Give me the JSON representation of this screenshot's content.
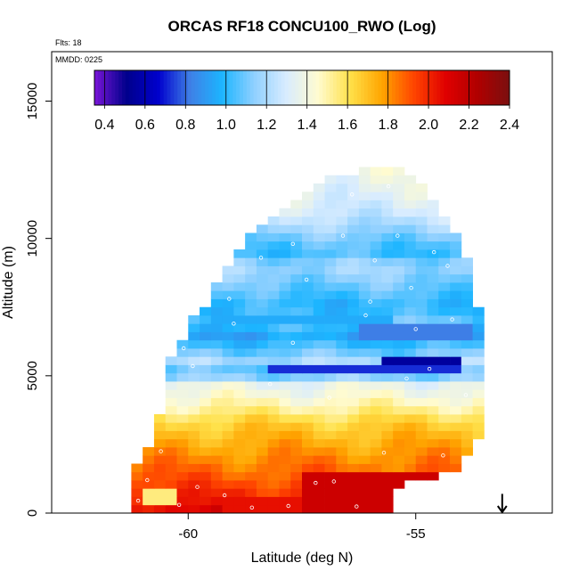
{
  "chart_data": {
    "type": "heatmap",
    "title": "ORCAS RF18 CONCU100_RWO (Log)",
    "flights_note": "Flts: 18",
    "date_note": "MMDD: 0225",
    "xlabel": "Latitude (deg N)",
    "ylabel": "Altitude (m)",
    "xlim": [
      -63,
      -52
    ],
    "ylim": [
      0,
      16800
    ],
    "xticks": [
      -60,
      -55
    ],
    "yticks": [
      0,
      5000,
      10000,
      15000
    ],
    "colorbar": {
      "range": [
        0.35,
        2.4
      ],
      "ticks": [
        0.4,
        0.6,
        0.8,
        1.0,
        1.2,
        1.4,
        1.6,
        1.8,
        2.0,
        2.2,
        2.4
      ],
      "tick_labels": [
        "0.4",
        "0.6",
        "0.8",
        "1.0",
        "1.2",
        "1.4",
        "1.6",
        "1.8",
        "2.0",
        "2.2",
        "2.4"
      ],
      "colors": [
        "#7a16d8",
        "#00008b",
        "#0000cd",
        "#3f80e6",
        "#1cb5ff",
        "#8fd0ff",
        "#d8ecff",
        "#fffbd0",
        "#ffe14a",
        "#ffa500",
        "#ff4500",
        "#e00000",
        "#b00000",
        "#7a1010"
      ]
    },
    "value_profile": {
      "altitudes_m": [
        0,
        400,
        800,
        1300,
        1800,
        2300,
        2800,
        3300,
        3800,
        4300,
        4700,
        5100,
        5500,
        6000,
        6500,
        7000,
        7500,
        8000,
        8500,
        9000,
        9500,
        10000,
        10500,
        11000,
        11500,
        12000,
        12500
      ],
      "log_values": [
        2.12,
        2.02,
        1.97,
        1.9,
        1.84,
        1.78,
        1.72,
        1.65,
        1.52,
        1.42,
        1.36,
        1.0,
        1.2,
        1.05,
        0.93,
        1.08,
        0.98,
        1.05,
        1.12,
        1.18,
        1.02,
        1.1,
        1.2,
        1.28,
        1.32,
        1.35,
        1.38
      ]
    },
    "coverage": {
      "altitudes_m": [
        0,
        1000,
        1500,
        2200,
        2600,
        3400,
        3800,
        4400,
        5000,
        5500,
        6000,
        6900,
        7500,
        8300,
        9500,
        10500,
        11500,
        12100,
        12500
      ],
      "lat_min": [
        -61.2,
        -61.2,
        -61.2,
        -61.0,
        -60.7,
        -60.7,
        -60.4,
        -60.4,
        -60.4,
        -60.4,
        -60.2,
        -60.0,
        -59.6,
        -59.4,
        -58.9,
        -58.5,
        -57.6,
        -57.1,
        -56.0
      ],
      "lat_max": [
        -55.5,
        -55.5,
        -54.1,
        -53.9,
        -53.6,
        -53.4,
        -53.4,
        -53.4,
        -53.4,
        -53.4,
        -53.4,
        -53.6,
        -53.6,
        -53.8,
        -53.9,
        -54.2,
        -54.6,
        -55.0,
        -55.4
      ]
    },
    "anomalies": [
      {
        "lat": [
          -57.6,
          -54.5
        ],
        "alt": [
          0,
          1600
        ],
        "value": 2.15
      },
      {
        "lat": [
          -59.3,
          -57.6
        ],
        "alt": [
          0,
          550
        ],
        "value": 2.05
      },
      {
        "lat": [
          -55.8,
          -54.1
        ],
        "alt": [
          5000,
          5550
        ],
        "value": 0.55
      },
      {
        "lat": [
          -58.2,
          -54.1
        ],
        "alt": [
          5050,
          5450
        ],
        "value": 0.72
      },
      {
        "lat": [
          -56.3,
          -53.8
        ],
        "alt": [
          6300,
          6800
        ],
        "value": 0.82
      },
      {
        "lat": [
          -59.5,
          -55.5
        ],
        "alt": [
          6850,
          7150
        ],
        "value": 0.95
      },
      {
        "lat": [
          -61.0,
          -60.2
        ],
        "alt": [
          300,
          900
        ],
        "value": 1.55
      }
    ],
    "sample_points": [
      [
        -61.1,
        450
      ],
      [
        -60.9,
        1200
      ],
      [
        -60.6,
        2250
      ],
      [
        -60.2,
        300
      ],
      [
        -59.8,
        950
      ],
      [
        -59.2,
        650
      ],
      [
        -58.6,
        200
      ],
      [
        -57.8,
        260
      ],
      [
        -57.2,
        1100
      ],
      [
        -56.8,
        1150
      ],
      [
        -56.3,
        240
      ],
      [
        -55.7,
        2200
      ],
      [
        -54.4,
        2100
      ],
      [
        -59.9,
        5350
      ],
      [
        -58.2,
        4700
      ],
      [
        -56.9,
        4200
      ],
      [
        -55.2,
        4900
      ],
      [
        -54.7,
        5250
      ],
      [
        -53.9,
        4300
      ],
      [
        -60.1,
        6000
      ],
      [
        -59.0,
        6900
      ],
      [
        -57.7,
        6200
      ],
      [
        -56.1,
        7200
      ],
      [
        -55.0,
        6700
      ],
      [
        -54.2,
        7050
      ],
      [
        -59.1,
        7800
      ],
      [
        -57.4,
        8500
      ],
      [
        -56.0,
        7700
      ],
      [
        -55.1,
        8200
      ],
      [
        -54.3,
        9000
      ],
      [
        -58.4,
        9300
      ],
      [
        -57.7,
        9800
      ],
      [
        -56.6,
        10100
      ],
      [
        -55.4,
        10100
      ],
      [
        -55.9,
        9200
      ],
      [
        -54.6,
        9500
      ],
      [
        -58.0,
        11200
      ],
      [
        -56.4,
        11600
      ],
      [
        -55.6,
        11900
      ]
    ],
    "annotation": {
      "type": "arrow",
      "lat": -53.1,
      "alt_top": 700,
      "alt_bottom": 0,
      "direction": "down"
    }
  }
}
